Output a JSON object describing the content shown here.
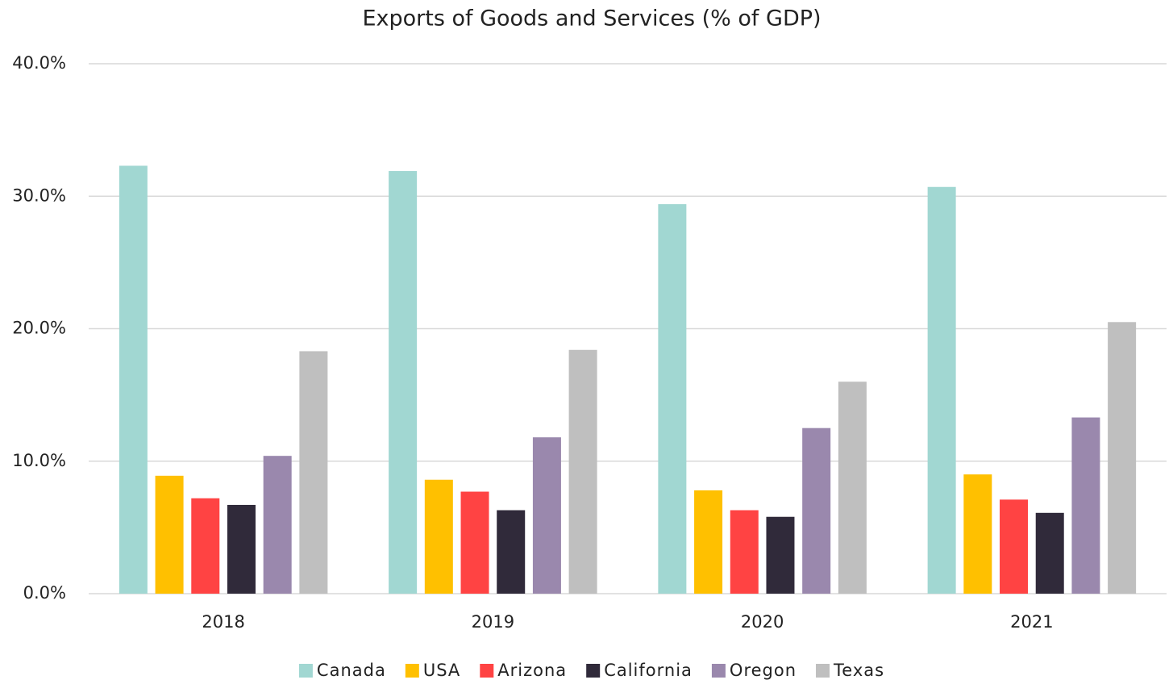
{
  "chart_data": {
    "type": "bar",
    "title": "Exports of Goods and Services (% of GDP)",
    "categories": [
      "2018",
      "2019",
      "2020",
      "2021"
    ],
    "series": [
      {
        "name": "Canada",
        "color": "#a1d7d2",
        "values": [
          32.3,
          31.9,
          29.4,
          30.7
        ]
      },
      {
        "name": "USA",
        "color": "#ffc000",
        "values": [
          8.9,
          8.6,
          7.8,
          9.0
        ]
      },
      {
        "name": "Arizona",
        "color": "#ff4343",
        "values": [
          7.2,
          7.7,
          6.3,
          7.1
        ]
      },
      {
        "name": "California",
        "color": "#302a3a",
        "values": [
          6.7,
          6.3,
          5.8,
          6.1
        ]
      },
      {
        "name": "Oregon",
        "color": "#9a88ad",
        "values": [
          10.4,
          11.8,
          12.5,
          13.3
        ]
      },
      {
        "name": "Texas",
        "color": "#bfbfbf",
        "values": [
          18.3,
          18.4,
          16.0,
          20.5
        ]
      }
    ],
    "ylim": [
      0,
      40
    ],
    "yticks": [
      {
        "value": 0,
        "label": "0.0%"
      },
      {
        "value": 10,
        "label": "10.0%"
      },
      {
        "value": 20,
        "label": "20.0%"
      },
      {
        "value": 30,
        "label": "30.0%"
      },
      {
        "value": 40,
        "label": "40.0%"
      }
    ],
    "grid": true,
    "legend": "bottom"
  }
}
